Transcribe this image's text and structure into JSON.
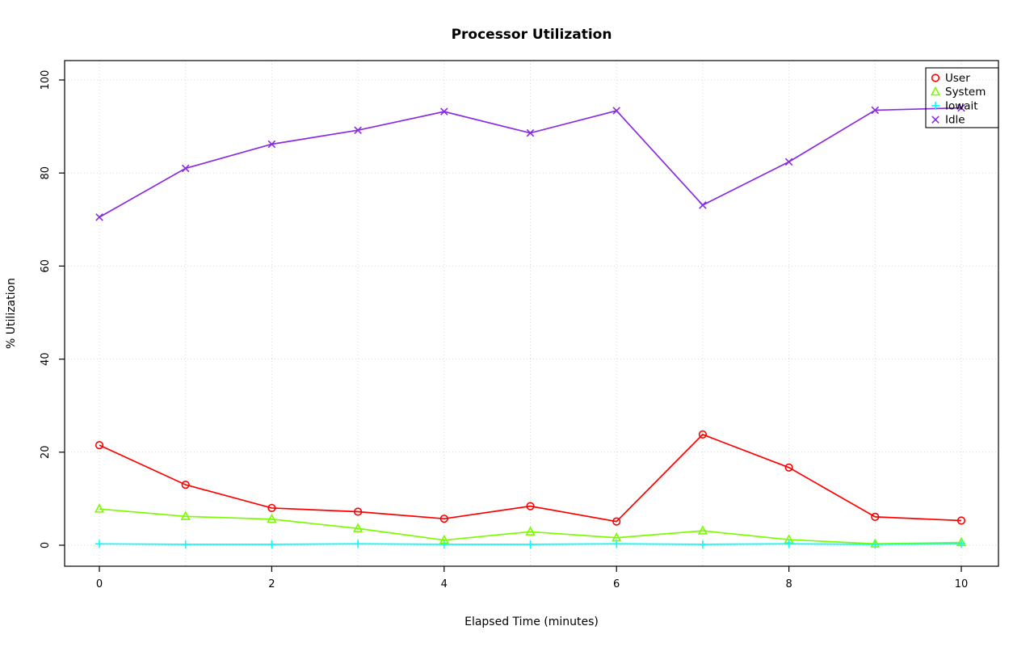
{
  "chart_data": {
    "type": "line",
    "title": "Processor Utilization",
    "xlabel": "Elapsed Time (minutes)",
    "ylabel": "% Utilization",
    "x": [
      0,
      1,
      2,
      3,
      4,
      5,
      6,
      7,
      8,
      9,
      10
    ],
    "xlim": [
      0,
      10
    ],
    "ylim": [
      0,
      100
    ],
    "x_ticks": [
      0,
      2,
      4,
      6,
      8,
      10
    ],
    "y_ticks": [
      0,
      20,
      40,
      60,
      80,
      100
    ],
    "grid": {
      "x_every": 1,
      "y_every": 20,
      "style": "dotted",
      "color": "#d8d8d8"
    },
    "legend_position": "top-right",
    "series": [
      {
        "name": "User",
        "color": "#ff0000",
        "symbol": "circle",
        "values": [
          21.5,
          13.0,
          8.0,
          7.2,
          5.7,
          8.4,
          5.1,
          23.8,
          16.7,
          6.1,
          5.3
        ]
      },
      {
        "name": "System",
        "color": "#7cfc00",
        "symbol": "triangle",
        "values": [
          7.8,
          6.2,
          5.6,
          3.6,
          1.1,
          2.9,
          1.6,
          3.1,
          1.2,
          0.3,
          0.6
        ]
      },
      {
        "name": "Iowait",
        "color": "#00ffff",
        "symbol": "plus",
        "values": [
          0.3,
          0.2,
          0.2,
          0.3,
          0.2,
          0.2,
          0.3,
          0.2,
          0.3,
          0.2,
          0.3
        ]
      },
      {
        "name": "Idle",
        "color": "#8a2be2",
        "symbol": "x",
        "values": [
          70.5,
          81.0,
          86.2,
          89.2,
          93.2,
          88.6,
          93.4,
          73.1,
          82.4,
          93.5,
          94.0
        ]
      }
    ]
  }
}
